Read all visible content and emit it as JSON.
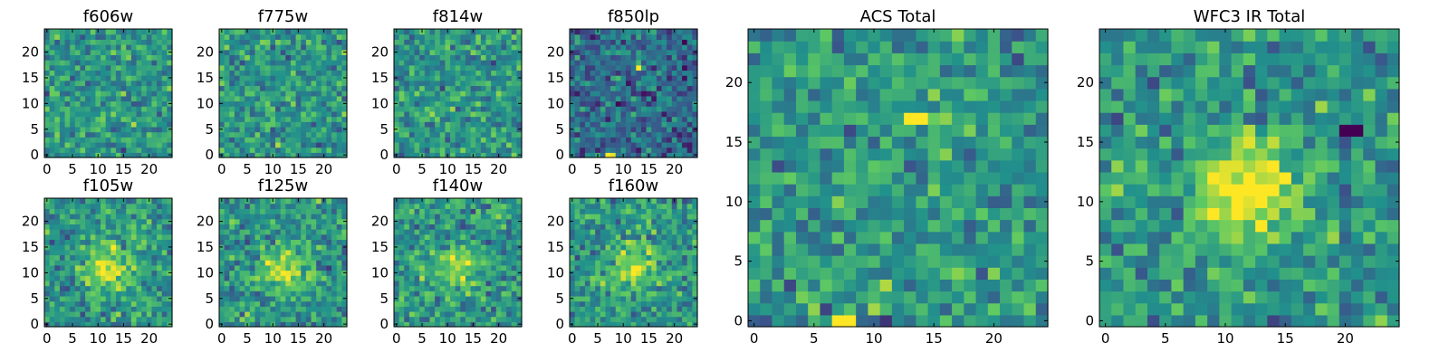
{
  "figure": {
    "description_colormap": "viridis",
    "colormap_stops": [
      "#440154",
      "#3b528b",
      "#21918c",
      "#5ec962",
      "#fde725"
    ]
  },
  "chart_data": [
    {
      "type": "heatmap",
      "title": "f606w",
      "size": 25,
      "seed": 11,
      "peak": 0.0,
      "x_ticks": [
        "0",
        "5",
        "10",
        "15",
        "20"
      ],
      "y_ticks": [
        "0",
        "5",
        "10",
        "15",
        "20"
      ],
      "hotspots": []
    },
    {
      "type": "heatmap",
      "title": "f775w",
      "size": 25,
      "seed": 23,
      "peak": 0.0,
      "x_ticks": [
        "0",
        "5",
        "10",
        "15",
        "20"
      ],
      "y_ticks": [
        "0",
        "5",
        "10",
        "15",
        "20"
      ],
      "hotspots": []
    },
    {
      "type": "heatmap",
      "title": "f814w",
      "size": 25,
      "seed": 37,
      "peak": 0.0,
      "x_ticks": [
        "0",
        "5",
        "10",
        "15",
        "20"
      ],
      "y_ticks": [
        "0",
        "5",
        "10",
        "15",
        "20"
      ],
      "hotspots": []
    },
    {
      "type": "heatmap",
      "title": "f850lp",
      "size": 25,
      "seed": 41,
      "peak": 0.0,
      "bias": -0.18,
      "x_ticks": [
        "0",
        "5",
        "10",
        "15",
        "20"
      ],
      "y_ticks": [
        "0",
        "5",
        "10",
        "15",
        "20"
      ],
      "hotspots": [
        {
          "x": 13,
          "y": 17,
          "v": 1.0
        },
        {
          "x": 7,
          "y": 0,
          "v": 1.0
        },
        {
          "x": 8,
          "y": 0,
          "v": 0.95
        }
      ]
    },
    {
      "type": "heatmap",
      "title": "f105w",
      "size": 25,
      "seed": 53,
      "peak": 0.45,
      "x_ticks": [
        "0",
        "5",
        "10",
        "15",
        "20"
      ],
      "y_ticks": [
        "0",
        "5",
        "10",
        "15",
        "20"
      ],
      "hotspots": []
    },
    {
      "type": "heatmap",
      "title": "f125w",
      "size": 25,
      "seed": 67,
      "peak": 0.4,
      "x_ticks": [
        "0",
        "5",
        "10",
        "15",
        "20"
      ],
      "y_ticks": [
        "0",
        "5",
        "10",
        "15",
        "20"
      ],
      "hotspots": []
    },
    {
      "type": "heatmap",
      "title": "f140w",
      "size": 25,
      "seed": 71,
      "peak": 0.3,
      "x_ticks": [
        "0",
        "5",
        "10",
        "15",
        "20"
      ],
      "y_ticks": [
        "0",
        "5",
        "10",
        "15",
        "20"
      ],
      "hotspots": []
    },
    {
      "type": "heatmap",
      "title": "f160w",
      "size": 25,
      "seed": 89,
      "peak": 0.4,
      "x_ticks": [
        "0",
        "5",
        "10",
        "15",
        "20"
      ],
      "y_ticks": [
        "0",
        "5",
        "10",
        "15",
        "20"
      ],
      "hotspots": []
    },
    {
      "type": "heatmap",
      "title": "ACS Total",
      "size": 25,
      "seed": 97,
      "peak": 0.0,
      "x_ticks": [
        "0",
        "5",
        "10",
        "15",
        "20"
      ],
      "y_ticks": [
        "0",
        "5",
        "10",
        "15",
        "20"
      ],
      "hotspots": [
        {
          "x": 13,
          "y": 17,
          "v": 1.0
        },
        {
          "x": 14,
          "y": 17,
          "v": 1.0
        },
        {
          "x": 7,
          "y": 0,
          "v": 1.0
        },
        {
          "x": 8,
          "y": 0,
          "v": 1.0
        }
      ]
    },
    {
      "type": "heatmap",
      "title": "WFC3 IR Total",
      "size": 25,
      "seed": 101,
      "peak": 0.55,
      "x_ticks": [
        "0",
        "5",
        "10",
        "15",
        "20"
      ],
      "y_ticks": [
        "0",
        "5",
        "10",
        "15",
        "20"
      ],
      "hotspots": [
        {
          "x": 20,
          "y": 16,
          "v": 0.0
        },
        {
          "x": 21,
          "y": 16,
          "v": 0.0
        }
      ]
    }
  ]
}
